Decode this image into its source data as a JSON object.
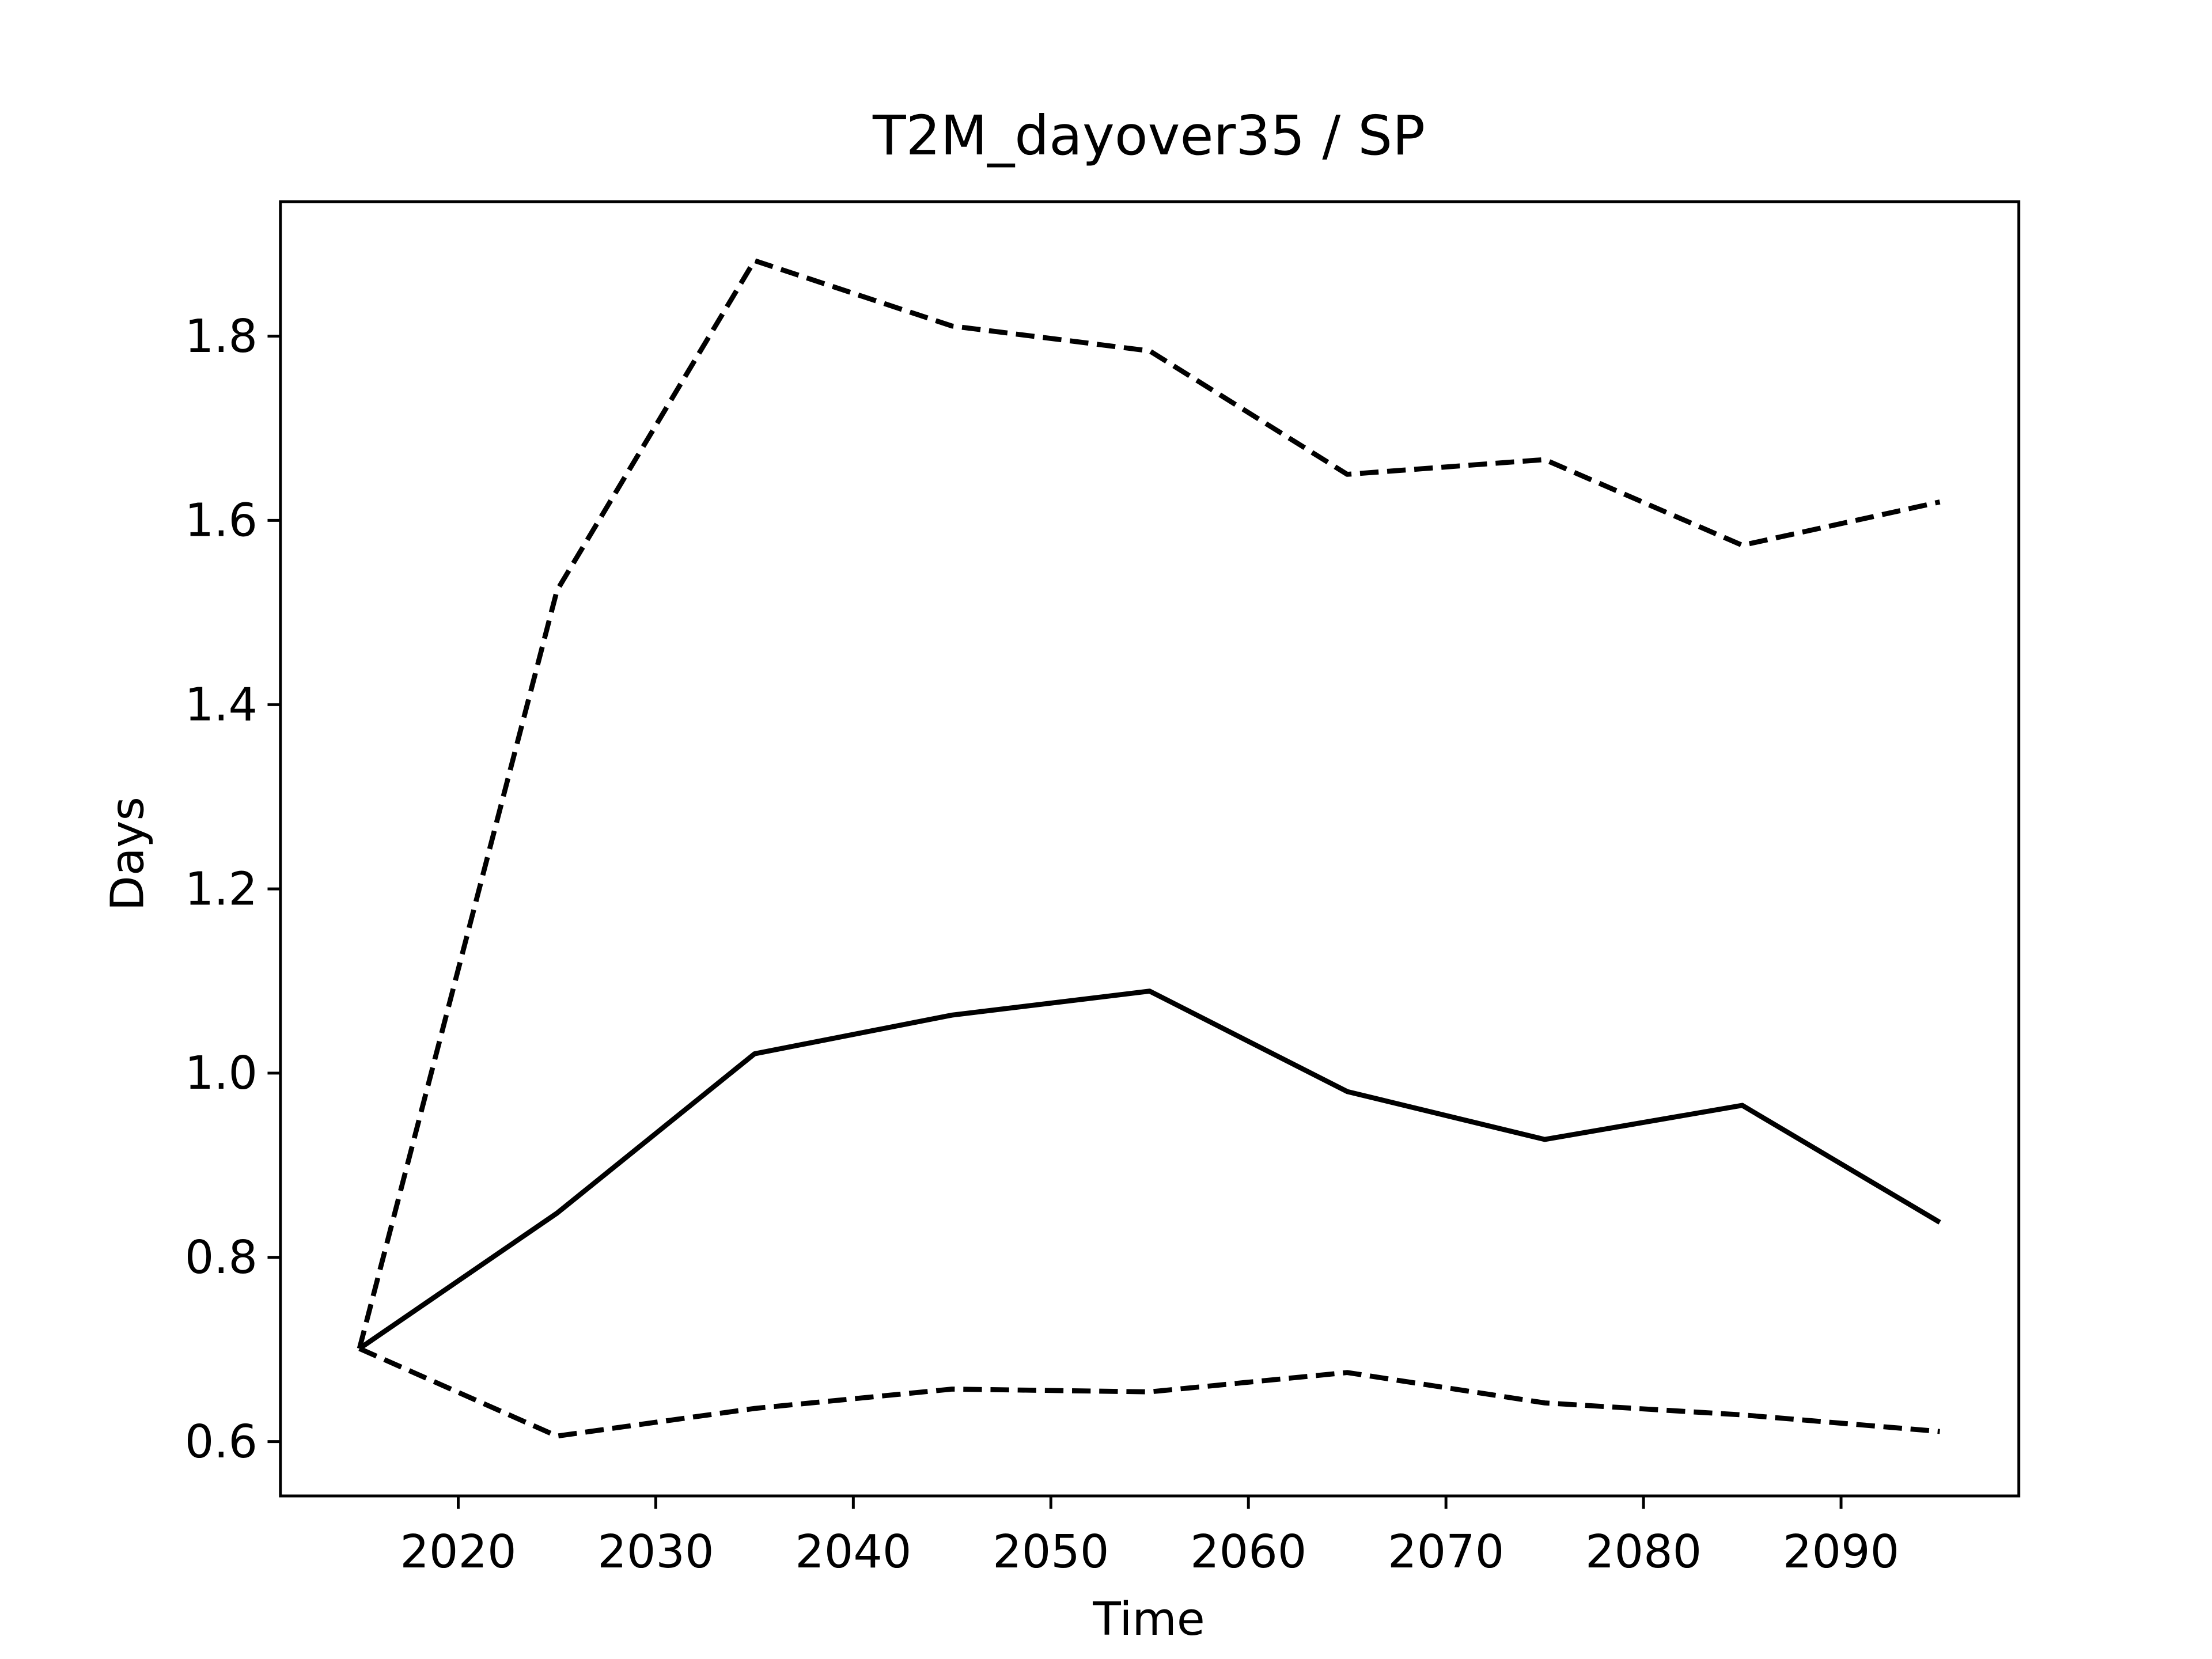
{
  "chart_data": {
    "type": "line",
    "title": "T2M_dayover35 / SP",
    "x_label": "Time",
    "y_label": "Days",
    "x": [
      2015,
      2025,
      2035,
      2045,
      2055,
      2065,
      2075,
      2085,
      2095
    ],
    "series": [
      {
        "color": "#000000",
        "linestyle": "solid",
        "values": [
          0.701,
          0.848,
          1.021,
          1.063,
          1.089,
          0.98,
          0.928,
          0.965,
          0.838
        ]
      },
      {
        "color": "#000000",
        "linestyle": "dashed",
        "values": [
          0.701,
          1.524,
          1.882,
          1.811,
          1.784,
          1.65,
          1.666,
          1.573,
          1.62
        ]
      },
      {
        "color": "#000000",
        "linestyle": "dashed",
        "values": [
          0.701,
          0.606,
          0.636,
          0.657,
          0.654,
          0.675,
          0.642,
          0.629,
          0.611
        ]
      }
    ],
    "xlim": [
      2011,
      2099
    ],
    "xticks": [
      2020,
      2030,
      2040,
      2050,
      2060,
      2070,
      2080,
      2090
    ],
    "ylim": [
      0.541,
      1.946
    ],
    "yticks": [
      0.6,
      0.8,
      {
        "value": 1,
        "label": "1.0"
      },
      1.2,
      1.4,
      1.6,
      1.8
    ],
    "grid": false
  }
}
